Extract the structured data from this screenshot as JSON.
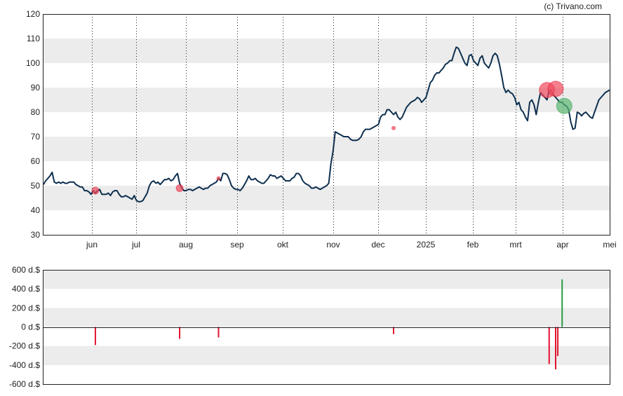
{
  "credit": "(c) Trivano.com",
  "colors": {
    "price_line": "#0d2f4f",
    "band": "#ececec",
    "sell": "#e0142e",
    "buy": "#2a9a43",
    "sell_bubble": "#f04a5e",
    "buy_bubble": "#5bb872"
  },
  "chart_data": [
    {
      "type": "line",
      "name": "price",
      "ylim": [
        30,
        120
      ],
      "y_ticks": [
        "30",
        "40",
        "50",
        "60",
        "70",
        "80",
        "90",
        "100",
        "110",
        "120"
      ],
      "x_ticks": [
        "jun",
        "jul",
        "aug",
        "sep",
        "okt",
        "nov",
        "dec",
        "2025",
        "feb",
        "mrt",
        "apr",
        "mei"
      ],
      "grid": "vertical dotted lines at month ticks, alternating horizontal bands",
      "series": [
        {
          "values": [
            50.5,
            52,
            53,
            54,
            55.5,
            51.5,
            51,
            51.5,
            51,
            51.5,
            51,
            51,
            51.5,
            51.5,
            51.5,
            50.5,
            50,
            49.5,
            49.5,
            48,
            48,
            47.5,
            46.5,
            48,
            47,
            48,
            48.5,
            46.5,
            46.5,
            46.5,
            47,
            46,
            47.5,
            48,
            48,
            46.5,
            45.5,
            45.5,
            46,
            45.5,
            45,
            44.5,
            46,
            44,
            43.5,
            43.5,
            44,
            45.5,
            47,
            50,
            51.5,
            52,
            51,
            51.5,
            50.5,
            51.5,
            52.5,
            52.5,
            53,
            52,
            52.5,
            54,
            55,
            51,
            49,
            48,
            48,
            48.5,
            48.5,
            48,
            48.5,
            49,
            49.5,
            49,
            48.5,
            49,
            49,
            50,
            50.5,
            51,
            51.5,
            53,
            52,
            55,
            55,
            54.5,
            52.5,
            50,
            49,
            48.5,
            48.5,
            48,
            49,
            50.5,
            52,
            54,
            52.5,
            52.5,
            53,
            52,
            51.5,
            51,
            51,
            52,
            53,
            54.5,
            54,
            54,
            53,
            53.5,
            54,
            53,
            52,
            52,
            52,
            53,
            53.5,
            55,
            55,
            54,
            52,
            51,
            50.5,
            50,
            49,
            49,
            49.5,
            49,
            48.5,
            49,
            49.5,
            50,
            51,
            59,
            64,
            72,
            71.5,
            71,
            70.5,
            70,
            70,
            70,
            69,
            68.5,
            68.5,
            68.5,
            69,
            70,
            72,
            73,
            73,
            73,
            73.5,
            74,
            74.5,
            75,
            78,
            79,
            79,
            81,
            81,
            80,
            79,
            80,
            78,
            77,
            78,
            80,
            82,
            83,
            84,
            84.5,
            85,
            86,
            85.5,
            84,
            85,
            86,
            89,
            92,
            93,
            95,
            96,
            96,
            97,
            98,
            99.5,
            100,
            101,
            101,
            104,
            106.5,
            106,
            104,
            102,
            100,
            99,
            103,
            103.5,
            101,
            100,
            99,
            102,
            103,
            100,
            99,
            98,
            100,
            103,
            104,
            103,
            99.5,
            95,
            90,
            88,
            89,
            88,
            87.5,
            86,
            83,
            84,
            81,
            80,
            78,
            76.5,
            84,
            85,
            83,
            79,
            84,
            88,
            87,
            86,
            85,
            89,
            88.5,
            87,
            86,
            85,
            84,
            84,
            83,
            82.5,
            81,
            76,
            73,
            73.5,
            80,
            79.5,
            78.5,
            79.5,
            80,
            79,
            78,
            77.5,
            80,
            82.5,
            85,
            86,
            87,
            88,
            88.5,
            89
          ]
        }
      ],
      "markers": [
        {
          "x_index": 24,
          "value": 48,
          "kind": "sell",
          "size": "small"
        },
        {
          "x_index": 63,
          "value": 49,
          "kind": "sell",
          "size": "small"
        },
        {
          "x_index": 81,
          "value": 53,
          "kind": "sell",
          "size": "tiny"
        },
        {
          "x_index": 162,
          "value": 73.5,
          "kind": "sell",
          "size": "tiny"
        },
        {
          "x_index": 233,
          "value": 89,
          "kind": "sell",
          "size": "large"
        },
        {
          "x_index": 237,
          "value": 89.5,
          "kind": "sell",
          "size": "large"
        },
        {
          "x_index": 241,
          "value": 82.5,
          "kind": "buy",
          "size": "large"
        }
      ]
    },
    {
      "type": "bar",
      "name": "insider transactions",
      "ylim": [
        -600,
        600
      ],
      "y_ticks": [
        "600 d.$",
        "400 d.$",
        "200 d.$",
        "0 d.$",
        "-200 d.$",
        "-400 d.$",
        "-600 d.$"
      ],
      "bars": [
        {
          "x_index": 24,
          "value": -190,
          "kind": "sell"
        },
        {
          "x_index": 63,
          "value": -125,
          "kind": "sell"
        },
        {
          "x_index": 81,
          "value": -110,
          "kind": "sell"
        },
        {
          "x_index": 162,
          "value": -75,
          "kind": "sell"
        },
        {
          "x_index": 234,
          "value": -390,
          "kind": "sell"
        },
        {
          "x_index": 237,
          "value": -445,
          "kind": "sell"
        },
        {
          "x_index": 238,
          "value": -305,
          "kind": "sell"
        },
        {
          "x_index": 240,
          "value": 500,
          "kind": "buy"
        }
      ]
    }
  ]
}
